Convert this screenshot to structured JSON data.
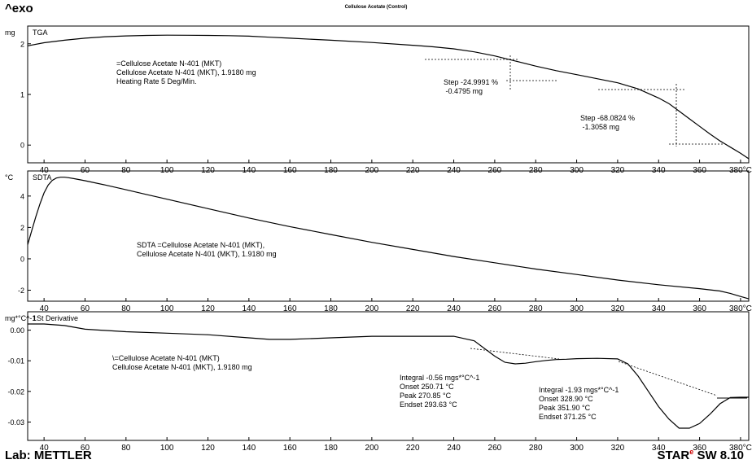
{
  "header": {
    "exo_label": "^exo",
    "title": "Cellulose Acetate (Control)"
  },
  "footer": {
    "lab": "Lab: METTLER",
    "software_brand": "STAR",
    "software_sup": "e",
    "software_version": " SW 8.10"
  },
  "chart_data": [
    {
      "type": "line",
      "name": "TGA",
      "unit_label": "mg",
      "xlim": [
        32,
        384
      ],
      "ylim": [
        -0.35,
        2.35
      ],
      "x_ticks": [
        40,
        60,
        80,
        100,
        120,
        140,
        160,
        180,
        200,
        220,
        240,
        260,
        280,
        300,
        320,
        340,
        360,
        380
      ],
      "x_tick_labels": [
        "40",
        "60",
        "80",
        "100",
        "120",
        "140",
        "160",
        "180",
        "200",
        "220",
        "240",
        "260",
        "280",
        "300",
        "320",
        "340",
        "360",
        "380°C"
      ],
      "y_ticks": [
        0,
        1,
        2
      ],
      "y_tick_labels": [
        "0",
        "1",
        "2"
      ],
      "series": [
        {
          "x": [
            32,
            40,
            50,
            60,
            70,
            80,
            90,
            100,
            110,
            120,
            130,
            140,
            150,
            160,
            180,
            200,
            220,
            230,
            240,
            250,
            260,
            270,
            280,
            290,
            300,
            310,
            315,
            320,
            330,
            340,
            345,
            350,
            355,
            360,
            365,
            370,
            375,
            380,
            384
          ],
          "y": [
            1.96,
            2.02,
            2.07,
            2.11,
            2.14,
            2.155,
            2.165,
            2.17,
            2.168,
            2.165,
            2.16,
            2.15,
            2.13,
            2.11,
            2.07,
            2.025,
            1.97,
            1.94,
            1.9,
            1.84,
            1.76,
            1.66,
            1.56,
            1.47,
            1.39,
            1.31,
            1.27,
            1.23,
            1.11,
            0.93,
            0.82,
            0.67,
            0.52,
            0.37,
            0.22,
            0.08,
            -0.04,
            -0.16,
            -0.27
          ]
        }
      ],
      "annotations": [
        {
          "lines": [
            "=Cellulose Acetate N-401 (MKT)",
            "Cellulose Acetate N-401 (MKT), 1.9180 mg",
            "",
            "Heating Rate 5 Deg/Min."
          ]
        },
        {
          "lines": [
            "Step   -24.9991 %",
            "           -0.4795 mg"
          ]
        },
        {
          "lines": [
            "Step   -68.0824 %",
            "           -1.3058 mg"
          ]
        }
      ]
    },
    {
      "type": "line",
      "name": "SDTA",
      "unit_label": "°C",
      "xlim": [
        32,
        384
      ],
      "ylim": [
        -2.7,
        5.6
      ],
      "x_ticks": [
        40,
        60,
        80,
        100,
        120,
        140,
        160,
        180,
        200,
        220,
        240,
        260,
        280,
        300,
        320,
        340,
        360,
        380
      ],
      "x_tick_labels": [
        "40",
        "60",
        "80",
        "100",
        "120",
        "140",
        "160",
        "180",
        "200",
        "220",
        "240",
        "260",
        "280",
        "300",
        "320",
        "340",
        "360",
        "380°C"
      ],
      "y_ticks": [
        -2,
        0,
        2,
        4
      ],
      "y_tick_labels": [
        "-2",
        "0",
        "2",
        "4"
      ],
      "series": [
        {
          "x": [
            32,
            34,
            36,
            38,
            40,
            42,
            44,
            46,
            48,
            50,
            52,
            55,
            60,
            70,
            80,
            90,
            100,
            120,
            140,
            160,
            180,
            200,
            220,
            240,
            260,
            280,
            300,
            320,
            340,
            360,
            370,
            375,
            380,
            384
          ],
          "y": [
            0.9,
            1.8,
            2.7,
            3.5,
            4.2,
            4.7,
            5.0,
            5.15,
            5.2,
            5.2,
            5.17,
            5.1,
            4.98,
            4.7,
            4.4,
            4.1,
            3.8,
            3.2,
            2.6,
            2.05,
            1.55,
            1.05,
            0.6,
            0.15,
            -0.25,
            -0.65,
            -1.0,
            -1.35,
            -1.65,
            -1.9,
            -2.05,
            -2.2,
            -2.4,
            -2.55
          ]
        }
      ],
      "annotations": [
        {
          "lines": [
            "SDTA =Cellulose Acetate N-401 (MKT),",
            "Cellulose Acetate N-401 (MKT), 1.9180 mg"
          ]
        }
      ]
    },
    {
      "type": "line",
      "name": "1St Derivative",
      "unit_label": "mg*°C^-1",
      "xlim": [
        32,
        384
      ],
      "ylim": [
        -0.036,
        0.006
      ],
      "x_ticks": [
        40,
        60,
        80,
        100,
        120,
        140,
        160,
        180,
        200,
        220,
        240,
        260,
        280,
        300,
        320,
        340,
        360,
        380
      ],
      "x_tick_labels": [
        "40",
        "60",
        "80",
        "100",
        "120",
        "140",
        "160",
        "180",
        "200",
        "220",
        "240",
        "260",
        "280",
        "300",
        "320",
        "340",
        "360",
        "380°C"
      ],
      "y_ticks": [
        0.0,
        -0.01,
        -0.02,
        -0.03
      ],
      "y_tick_labels": [
        "0.00",
        "-0.01",
        "-0.02",
        "-0.03"
      ],
      "series": [
        {
          "x": [
            32,
            40,
            50,
            60,
            80,
            100,
            120,
            140,
            150,
            160,
            180,
            200,
            220,
            240,
            250,
            255,
            260,
            265,
            270,
            275,
            280,
            285,
            290,
            295,
            300,
            310,
            320,
            325,
            330,
            335,
            340,
            345,
            350,
            355,
            360,
            365,
            370,
            375,
            380,
            384
          ],
          "y": [
            0.002,
            0.002,
            0.0015,
            0.0003,
            -0.0005,
            -0.001,
            -0.0015,
            -0.0025,
            -0.003,
            -0.003,
            -0.0025,
            -0.002,
            -0.002,
            -0.002,
            -0.0035,
            -0.006,
            -0.0085,
            -0.0105,
            -0.011,
            -0.0108,
            -0.0103,
            -0.0099,
            -0.0096,
            -0.0095,
            -0.0093,
            -0.0092,
            -0.0094,
            -0.011,
            -0.015,
            -0.02,
            -0.025,
            -0.029,
            -0.032,
            -0.032,
            -0.0305,
            -0.0275,
            -0.024,
            -0.022,
            -0.0219,
            -0.0219
          ]
        }
      ],
      "annotations": [
        {
          "lines": [
            "\\=Cellulose Acetate N-401 (MKT)",
            "Cellulose Acetate N-401 (MKT), 1.9180 mg"
          ]
        },
        {
          "lines": [
            "Integral   -0.56 mgs*°C^-1",
            "Onset      250.71 °C",
            "Peak        270.85 °C",
            "Endset     293.63 °C"
          ]
        },
        {
          "lines": [
            "Integral   -1.93 mgs*°C^-1",
            "Onset      328.90 °C",
            "Peak        351.90 °C",
            "Endset     371.25 °C"
          ]
        }
      ]
    }
  ]
}
